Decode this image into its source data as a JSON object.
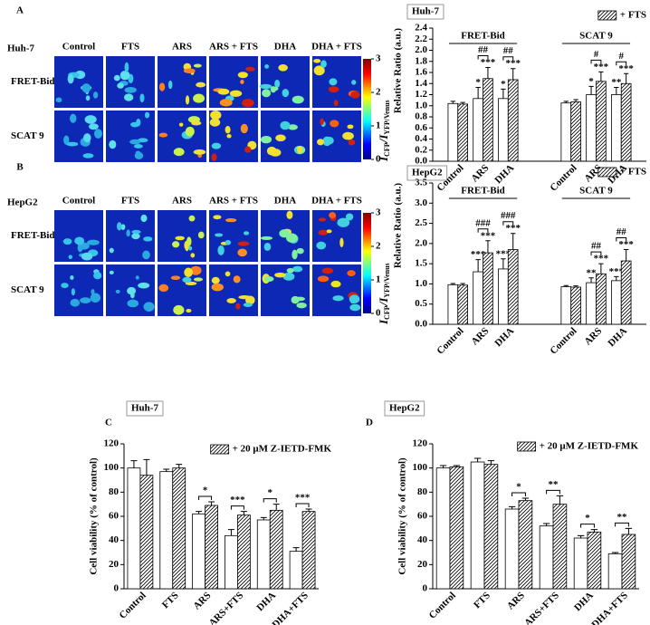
{
  "panel_labels": [
    "A",
    "B",
    "C",
    "D"
  ],
  "image_panels": [
    {
      "cell_line": "Huh-7",
      "columns": [
        "Control",
        "FTS",
        "ARS",
        "ARS + FTS",
        "DHA",
        "DHA + FTS"
      ],
      "rows": [
        "FRET-Bid",
        "SCAT 9"
      ],
      "colorbar_ticks": [
        0,
        1,
        2,
        3
      ]
    },
    {
      "cell_line": "HepG2",
      "columns": [
        "Control",
        "FTS",
        "ARS",
        "ARS + FTS",
        "DHA",
        "DHA + FTS"
      ],
      "rows": [
        "FRET-Bid",
        "SCAT 9"
      ],
      "colorbar_ticks": [
        0,
        1,
        2,
        3
      ]
    }
  ],
  "chart_data": [
    {
      "type": "bar",
      "title": "Huh-7",
      "ylabel": "Relative Ratio (a.u.)",
      "ylabel_ratio": [
        "I",
        "CFP",
        "/I",
        "YFP/Venus"
      ],
      "ylim": [
        0,
        2.4
      ],
      "yticks": [
        {
          "value": 0,
          "label": "0.0"
        },
        0.2,
        0.4,
        0.6,
        0.8,
        {
          "value": 1,
          "label": "1.0"
        },
        1.2,
        1.4,
        1.6,
        1.8,
        {
          "value": 2,
          "label": "2.0"
        },
        2.2,
        2.4
      ],
      "legend": {
        "label": "+ FTS",
        "position": "upper right"
      },
      "series_styles": [
        {
          "color": "#ffffff",
          "hatch": false
        },
        {
          "color": "#ffffff",
          "hatch": true
        }
      ],
      "groups": [
        {
          "label": "FRET-Bid",
          "categories": [
            "Control",
            "ARS",
            "DHA"
          ],
          "series": [
            {
              "values": [
                1.04,
                1.13,
                1.13
              ],
              "errors": [
                0.04,
                0.2,
                0.17
              ],
              "stars": [
                null,
                "*",
                "*"
              ]
            },
            {
              "values": [
                1.03,
                1.49,
                1.47
              ],
              "errors": [
                0.03,
                0.2,
                0.2
              ],
              "stars": [
                null,
                "***",
                "***"
              ]
            }
          ],
          "comparisons": [
            null,
            "##",
            "##"
          ]
        },
        {
          "label": "SCAT 9",
          "categories": [
            "Control",
            "ARS",
            "DHA"
          ],
          "series": [
            {
              "values": [
                1.05,
                1.2,
                1.2
              ],
              "errors": [
                0.03,
                0.15,
                0.13
              ],
              "stars": [
                null,
                "*",
                "**"
              ]
            },
            {
              "values": [
                1.07,
                1.44,
                1.4
              ],
              "errors": [
                0.04,
                0.17,
                0.18
              ],
              "stars": [
                null,
                "***",
                "***"
              ]
            }
          ],
          "comparisons": [
            null,
            "#",
            "#"
          ]
        }
      ]
    },
    {
      "type": "bar",
      "title": "HepG2",
      "ylabel": "Relative Ratio (a.u.)",
      "ylabel_ratio": [
        "I",
        "CFP",
        "/I",
        "YFP/Venus"
      ],
      "ylim": [
        0,
        3.5
      ],
      "yticks": [
        {
          "value": 0,
          "label": "0.0"
        },
        0.5,
        {
          "value": 1,
          "label": "1.0"
        },
        1.5,
        {
          "value": 2,
          "label": "2.0"
        },
        2.5,
        {
          "value": 3,
          "label": "3.0"
        },
        3.5
      ],
      "legend": {
        "label": "+ FTS",
        "position": "upper right"
      },
      "series_styles": [
        {
          "color": "#ffffff",
          "hatch": false
        },
        {
          "color": "#ffffff",
          "hatch": true
        }
      ],
      "groups": [
        {
          "label": "FRET-Bid",
          "categories": [
            "Control",
            "ARS",
            "DHA"
          ],
          "series": [
            {
              "values": [
                0.98,
                1.3,
                1.37
              ],
              "errors": [
                0.03,
                0.3,
                0.25
              ],
              "stars": [
                null,
                "***",
                "***"
              ]
            },
            {
              "values": [
                0.97,
                1.77,
                1.85
              ],
              "errors": [
                0.04,
                0.3,
                0.4
              ],
              "stars": [
                null,
                "***",
                "***"
              ]
            }
          ],
          "comparisons": [
            null,
            "###",
            "###"
          ]
        },
        {
          "label": "SCAT 9",
          "categories": [
            "Control",
            "ARS",
            "DHA"
          ],
          "series": [
            {
              "values": [
                0.93,
                1.03,
                1.08
              ],
              "errors": [
                0.03,
                0.12,
                0.1
              ],
              "stars": [
                null,
                "**",
                "***"
              ]
            },
            {
              "values": [
                0.92,
                1.25,
                1.57
              ],
              "errors": [
                0.03,
                0.25,
                0.28
              ],
              "stars": [
                null,
                "***",
                "***"
              ]
            }
          ],
          "comparisons": [
            null,
            "##",
            "##"
          ]
        }
      ]
    },
    {
      "type": "bar",
      "title": "Huh-7",
      "ylabel": "Cell viability (% of control)",
      "ylim": [
        0,
        120
      ],
      "yticks": [
        0,
        20,
        40,
        60,
        80,
        100,
        120
      ],
      "legend": {
        "label": "+ 20 μM Z-IETD-FMK",
        "position": "upper right"
      },
      "series_styles": [
        {
          "color": "#ffffff",
          "hatch": false
        },
        {
          "color": "#ffffff",
          "hatch": true
        }
      ],
      "categories": [
        "Control",
        "FTS",
        "ARS",
        "ARS+FTS",
        "DHA",
        "DHA+FTS"
      ],
      "series": [
        {
          "values": [
            100,
            97,
            62,
            44,
            57,
            31
          ],
          "errors": [
            6,
            2,
            2,
            5,
            2,
            3
          ]
        },
        {
          "values": [
            94,
            100,
            69,
            61,
            65,
            64
          ],
          "errors": [
            13,
            3,
            3,
            3,
            5,
            2
          ]
        }
      ],
      "comparisons": [
        null,
        null,
        "*",
        "***",
        "*",
        "***"
      ]
    },
    {
      "type": "bar",
      "title": "HepG2",
      "ylabel": "Cell viability (% of control)",
      "ylim": [
        0,
        120
      ],
      "yticks": [
        0,
        20,
        40,
        60,
        80,
        100,
        120
      ],
      "legend": {
        "label": "+ 20 μM Z-IETD-FMK",
        "position": "upper right"
      },
      "series_styles": [
        {
          "color": "#ffffff",
          "hatch": false
        },
        {
          "color": "#ffffff",
          "hatch": true
        }
      ],
      "categories": [
        "Control",
        "FTS",
        "ARS",
        "ARS+FTS",
        "DHA",
        "DHA+FTS"
      ],
      "series": [
        {
          "values": [
            100,
            105,
            66,
            52,
            42,
            29
          ],
          "errors": [
            2,
            3,
            2,
            2,
            2,
            1
          ]
        },
        {
          "values": [
            101,
            103,
            73,
            70,
            47,
            45
          ],
          "errors": [
            1,
            3,
            2,
            7,
            2,
            5
          ]
        }
      ],
      "comparisons": [
        null,
        null,
        "*",
        "**",
        "*",
        "**"
      ]
    }
  ]
}
